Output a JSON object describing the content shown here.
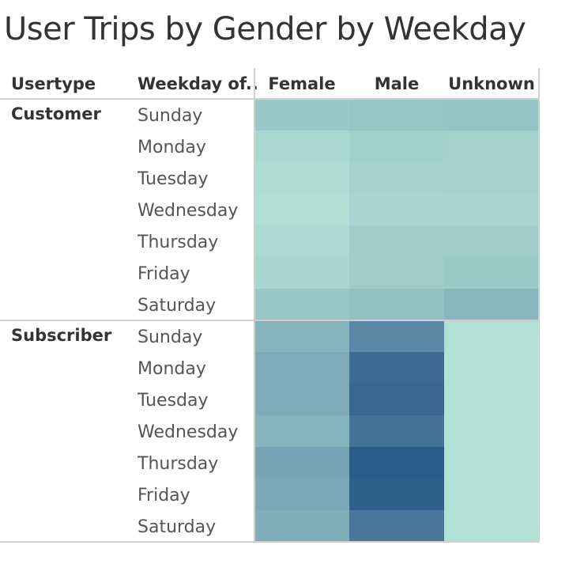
{
  "chart_data": {
    "type": "heatmap",
    "title": "User Trips by Gender by Weekday",
    "row_headers": [
      "Usertype",
      "Weekday of.."
    ],
    "columns": [
      "Female",
      "Male",
      "Unknown"
    ],
    "groups": [
      "Customer",
      "Subscriber"
    ],
    "weekdays": [
      "Sunday",
      "Monday",
      "Tuesday",
      "Wednesday",
      "Thursday",
      "Friday",
      "Saturday"
    ],
    "color_scale": [
      "#b9e6d8",
      "#2c5a8a"
    ],
    "color_domain": [
      0,
      100
    ],
    "cells": {
      "Customer": [
        [
          22,
          24,
          25
        ],
        [
          10,
          16,
          15
        ],
        [
          7,
          14,
          14
        ],
        [
          5,
          12,
          13
        ],
        [
          9,
          17,
          18
        ],
        [
          11,
          18,
          21
        ],
        [
          23,
          27,
          34
        ]
      ],
      "Subscriber": [
        [
          35,
          67,
          4
        ],
        [
          42,
          88,
          4
        ],
        [
          42,
          90,
          4
        ],
        [
          36,
          82,
          4
        ],
        [
          47,
          100,
          4
        ],
        [
          44,
          96,
          4
        ],
        [
          40,
          79,
          4
        ]
      ]
    }
  }
}
